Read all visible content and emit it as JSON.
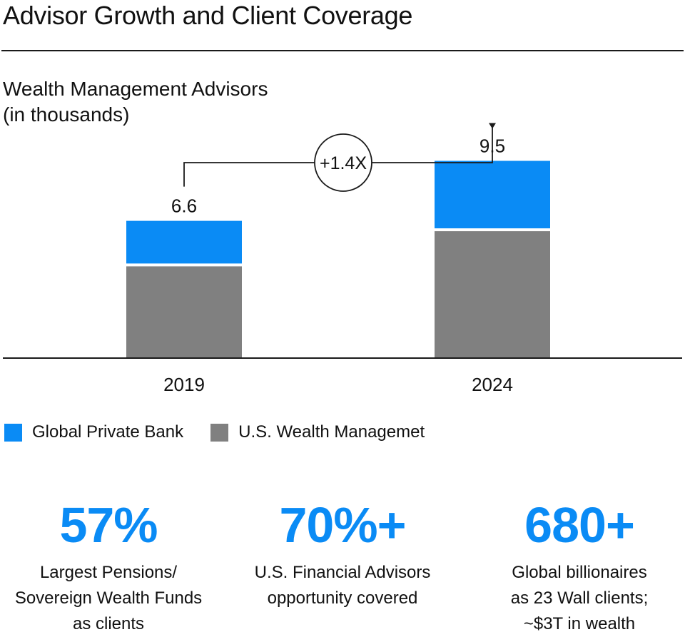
{
  "header": {
    "title": "Advisor Growth and Client Coverage",
    "subtitle_line1": "Wealth Management Advisors",
    "subtitle_line2": "(in thousands)"
  },
  "colors": {
    "blue": "#0A8BF5",
    "gray": "#808080",
    "text": "#111111"
  },
  "chart_data": {
    "type": "bar",
    "stacked": true,
    "title": "Wealth Management Advisors (in thousands)",
    "categories": [
      "2019",
      "2024"
    ],
    "totals": [
      6.6,
      9.5
    ],
    "total_labels": [
      "6.6",
      "9.5"
    ],
    "series": [
      {
        "name": "U.S. Wealth Managemet",
        "color": "#808080",
        "values": [
          4.4,
          6.1
        ]
      },
      {
        "name": "Global Private Bank",
        "color": "#0A8BF5",
        "values": [
          2.2,
          3.4
        ]
      }
    ],
    "growth_annotation": "+1.4X",
    "ylim": [
      0,
      10
    ],
    "grid": false
  },
  "legend": [
    {
      "label": "Global Private Bank",
      "color": "#0A8BF5"
    },
    {
      "label": "U.S. Wealth Managemet",
      "color": "#808080"
    }
  ],
  "stats": [
    {
      "value": "57%",
      "lines": [
        "Largest Pensions/",
        "Sovereign Wealth Funds",
        "as clients"
      ]
    },
    {
      "value": "70%+",
      "lines": [
        "U.S. Financial Advisors",
        "opportunity covered"
      ]
    },
    {
      "value": "680+",
      "lines": [
        "Global billionaires",
        "as 23 Wall clients;",
        "~$3T in wealth"
      ]
    }
  ]
}
